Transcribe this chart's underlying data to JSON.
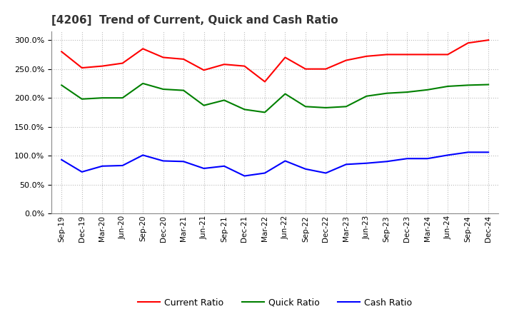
{
  "title": "[4206]  Trend of Current, Quick and Cash Ratio",
  "labels": [
    "Sep-19",
    "Dec-19",
    "Mar-20",
    "Jun-20",
    "Sep-20",
    "Dec-20",
    "Mar-21",
    "Jun-21",
    "Sep-21",
    "Dec-21",
    "Mar-22",
    "Jun-22",
    "Sep-22",
    "Dec-22",
    "Mar-23",
    "Jun-23",
    "Sep-23",
    "Dec-23",
    "Mar-24",
    "Jun-24",
    "Sep-24",
    "Dec-24"
  ],
  "current_ratio": [
    280,
    252,
    255,
    260,
    285,
    270,
    267,
    248,
    258,
    255,
    228,
    270,
    250,
    250,
    265,
    272,
    275,
    275,
    275,
    275,
    295,
    300
  ],
  "quick_ratio": [
    222,
    198,
    200,
    200,
    225,
    215,
    213,
    187,
    196,
    180,
    175,
    207,
    185,
    183,
    185,
    203,
    208,
    210,
    214,
    220,
    222,
    223
  ],
  "cash_ratio": [
    93,
    72,
    82,
    83,
    101,
    91,
    90,
    78,
    82,
    65,
    70,
    91,
    77,
    70,
    85,
    87,
    90,
    95,
    95,
    101,
    106,
    106
  ],
  "current_color": "#FF0000",
  "quick_color": "#008000",
  "cash_color": "#0000FF",
  "ylim": [
    0,
    315
  ],
  "yticks": [
    0,
    50,
    100,
    150,
    200,
    250,
    300
  ],
  "background_color": "#FFFFFF",
  "grid_color": "#BBBBBB"
}
